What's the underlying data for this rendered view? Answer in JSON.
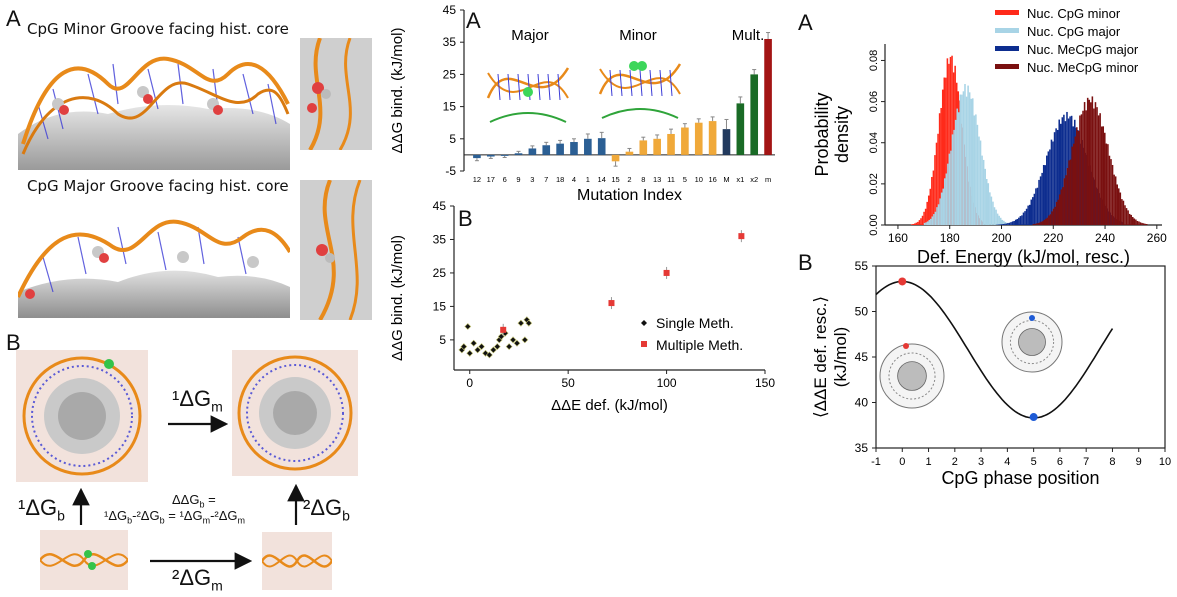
{
  "left": {
    "label_A": "A",
    "caption_minor": "CpG Minor Groove facing hist. core",
    "caption_major": "CpG Major Groove facing hist. core",
    "label_B": "B",
    "cycle": {
      "dg_m1": "¹ΔG",
      "dg_m1_sub": "m",
      "dg_b1": "¹ΔG",
      "dg_b1_sub": "b",
      "dg_b2": "²ΔG",
      "dg_b2_sub": "b",
      "dg_m2": "²ΔG",
      "dg_m2_sub": "m",
      "center_line1": "ΔΔG",
      "center_line1_sub": "b",
      "center_line1_tail": " =",
      "center_line2": "¹ΔG",
      "center_line2_b": "b",
      "center_line2_mid": "-²ΔG",
      "center_line2_b2": "b",
      "center_line2_eq": " = ¹ΔG",
      "center_line2_m": "m",
      "center_line2_mid2": "-²ΔG",
      "center_line2_m2": "m"
    }
  },
  "middle": {
    "label_A": "A",
    "label_B": "B",
    "group_labels": [
      "Major",
      "Minor",
      "Mult."
    ]
  },
  "right": {
    "label_A": "A",
    "label_B": "B"
  },
  "chart_data": [
    {
      "id": "mid-A",
      "type": "bar",
      "ylabel": "ΔΔG bind. (kJ/mol)",
      "xlabel": "Mutation Index",
      "ylim": [
        -5,
        45
      ],
      "yticks": [
        -5,
        5,
        15,
        25,
        35,
        45
      ],
      "categories": [
        "12",
        "17",
        "6",
        "9",
        "3",
        "7",
        "18",
        "4",
        "1",
        "14",
        "15",
        "2",
        "8",
        "13",
        "11",
        "5",
        "10",
        "16",
        "M",
        "x1",
        "x2",
        "m"
      ],
      "values": [
        -1,
        -0.5,
        -0.3,
        0.5,
        2,
        3,
        3.5,
        4,
        5,
        5.2,
        -2,
        1,
        4.5,
        5,
        6.5,
        8.5,
        10,
        10.5,
        8,
        16,
        25,
        36
      ],
      "errors": [
        0.8,
        0.6,
        0.5,
        0.6,
        0.8,
        0.9,
        1.0,
        1.0,
        1.5,
        1.8,
        1.5,
        1.0,
        1.0,
        1.2,
        1.5,
        1.2,
        1.2,
        1.3,
        3.0,
        2.0,
        1.5,
        2.0
      ],
      "colors": [
        "#2b5f94",
        "#2b5f94",
        "#2b5f94",
        "#2b5f94",
        "#2b5f94",
        "#2b5f94",
        "#2b5f94",
        "#2b5f94",
        "#2b5f94",
        "#2b5f94",
        "#f0a93a",
        "#f0a93a",
        "#f0a93a",
        "#f0a93a",
        "#f0a93a",
        "#f0a93a",
        "#f0a93a",
        "#f0a93a",
        "#223a5e",
        "#1a6b26",
        "#1a6b26",
        "#a31515"
      ]
    },
    {
      "id": "mid-B",
      "type": "scatter",
      "ylabel": "ΔΔG bind. (kJ/mol)",
      "xlabel": "ΔΔE def. (kJ/mol)",
      "xlim": [
        -8,
        150
      ],
      "ylim": [
        -4,
        45
      ],
      "xticks": [
        0,
        50,
        100,
        150
      ],
      "yticks": [
        5,
        15,
        25,
        35,
        45
      ],
      "series": [
        {
          "name": "Single Meth.",
          "color": "#111111",
          "x": [
            -4,
            -3,
            -1,
            0,
            2,
            4,
            6,
            8,
            10,
            12,
            14,
            15,
            16,
            18,
            20,
            22,
            24,
            26,
            28,
            29,
            30
          ],
          "y": [
            2,
            3,
            9,
            1,
            4,
            2,
            3,
            1,
            0.5,
            2,
            3,
            5,
            6,
            7,
            3,
            5,
            4,
            10,
            5,
            11,
            10
          ]
        },
        {
          "name": "Multiple Meth.",
          "color": "#e53935",
          "x": [
            17,
            72,
            100,
            138
          ],
          "y": [
            8,
            16,
            25,
            36
          ]
        }
      ]
    },
    {
      "id": "right-A",
      "type": "area",
      "ylabel": "Probability density",
      "xlabel": "Def. Energy (kJ/mol, resc.)",
      "xlim": [
        155,
        262
      ],
      "ylim": [
        0,
        0.088
      ],
      "xticks": [
        160,
        180,
        200,
        220,
        240,
        260
      ],
      "yticks": [
        0.0,
        0.02,
        0.04,
        0.06,
        0.08
      ],
      "series": [
        {
          "name": "Nuc. CpG minor",
          "color": "#ff2a1a",
          "mean": 180,
          "sd": 4.5,
          "peak": 0.084,
          "xmin": 165,
          "xmax": 193
        },
        {
          "name": "Nuc. CpG major",
          "color": "#a8d4e6",
          "mean": 186,
          "sd": 5.5,
          "peak": 0.069,
          "xmin": 170,
          "xmax": 205
        },
        {
          "name": "Nuc. MeCpG major",
          "color": "#0d2d8f",
          "mean": 225,
          "sd": 8.0,
          "peak": 0.055,
          "xmin": 198,
          "xmax": 247
        },
        {
          "name": "Nuc. MeCpG minor",
          "color": "#7a1010",
          "mean": 234,
          "sd": 7.0,
          "peak": 0.063,
          "xmin": 212,
          "xmax": 256
        }
      ],
      "legend_placement": "top-right"
    },
    {
      "id": "right-B",
      "type": "line",
      "ylabel": "⟨ΔΔE def. resc.⟩ (kJ/mol)",
      "xlabel": "CpG phase position",
      "xlim": [
        -1,
        10
      ],
      "ylim": [
        35,
        55
      ],
      "xticks": [
        -1,
        0,
        1,
        2,
        3,
        4,
        5,
        6,
        7,
        8,
        9,
        10
      ],
      "yticks": [
        35,
        40,
        45,
        50,
        55
      ],
      "curve": {
        "amplitude": 7.5,
        "mean": 45.8,
        "period": 10.0,
        "peak_x": 0.0,
        "x_start": -1,
        "x_end": 8
      },
      "points": [
        {
          "x": 0,
          "y": 53.3,
          "color": "#e53935"
        },
        {
          "x": 5,
          "y": 38.4,
          "color": "#1e5bd6"
        }
      ]
    }
  ]
}
